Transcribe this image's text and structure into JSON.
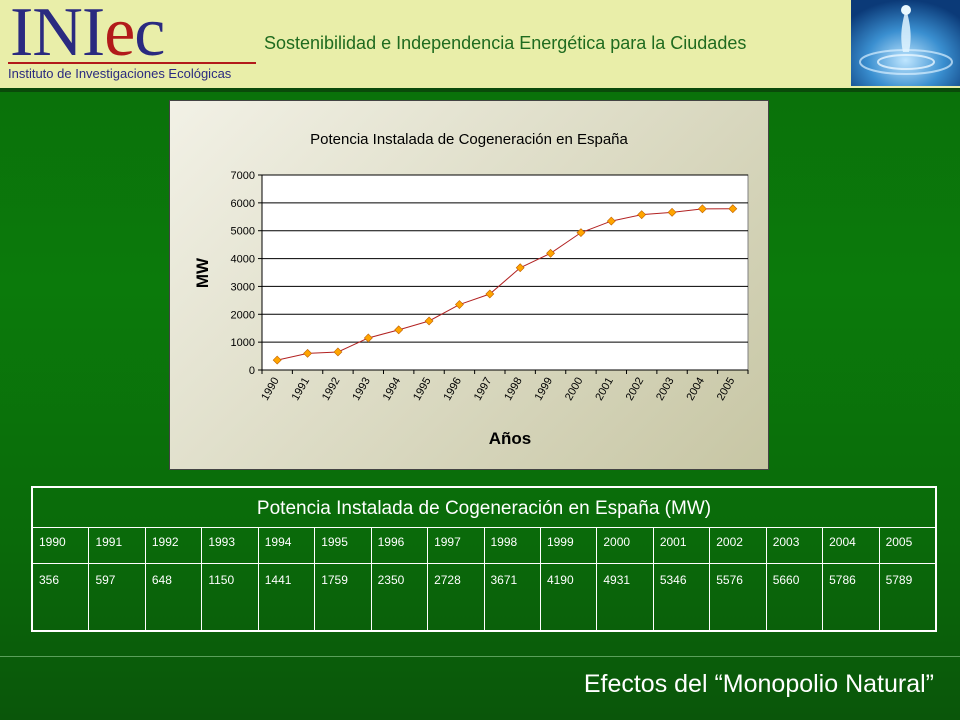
{
  "header": {
    "logo_word_1": "INI",
    "logo_word_2": "e",
    "logo_word_3": "c",
    "logo_subtitle": "Instituto de Investigaciones Ecológicas",
    "tagline": "Sostenibilidad e Independencia Energética para la Ciudades"
  },
  "chart_data": {
    "type": "line",
    "title": "Potencia Instalada de Cogeneración en España",
    "xlabel": "Años",
    "ylabel": "MW",
    "categories": [
      "1990",
      "1991",
      "1992",
      "1993",
      "1994",
      "1995",
      "1996",
      "1997",
      "1998",
      "1999",
      "2000",
      "2001",
      "2002",
      "2003",
      "2004",
      "2005"
    ],
    "values": [
      356,
      597,
      648,
      1150,
      1441,
      1759,
      2350,
      2728,
      3671,
      4190,
      4931,
      5346,
      5576,
      5660,
      5786,
      5789
    ],
    "ylim": [
      0,
      7000
    ],
    "yticks": [
      "0",
      "1000",
      "2000",
      "3000",
      "4000",
      "5000",
      "6000",
      "7000"
    ],
    "grid": "horizontal",
    "line_color": "#b22222",
    "marker_color": "#ffa500",
    "legend": "none"
  },
  "table": {
    "title": "Potencia Instalada de Cogeneración en España (MW)",
    "years": [
      "1990",
      "1991",
      "1992",
      "1993",
      "1994",
      "1995",
      "1996",
      "1997",
      "1998",
      "1999",
      "2000",
      "2001",
      "2002",
      "2003",
      "2004",
      "2005"
    ],
    "values": [
      "356",
      "597",
      "648",
      "1150",
      "1441",
      "1759",
      "2350",
      "2728",
      "3671",
      "4190",
      "4931",
      "5346",
      "5576",
      "5660",
      "5786",
      "5789"
    ]
  },
  "footer": {
    "title": "Efectos del “Monopolio Natural”"
  }
}
